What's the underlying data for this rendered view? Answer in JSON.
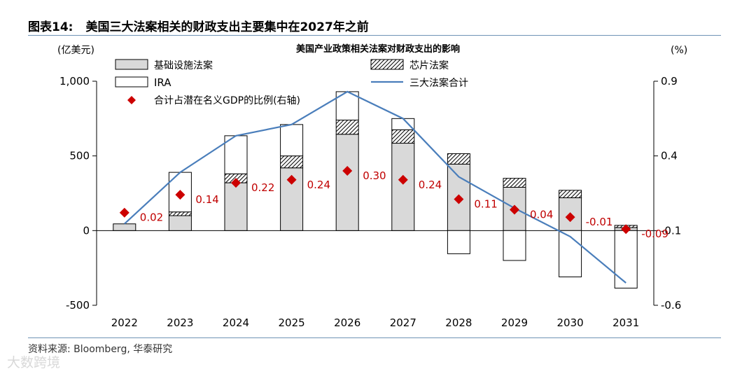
{
  "figure": {
    "label": "图表14:",
    "title": "美国三大法案相关的财政支出主要集中在2027年之前",
    "source": "资料来源: Bloomberg, 华泰研究",
    "watermark": "大数跨境"
  },
  "colors": {
    "infra": "#d9d9d9",
    "chips_hatch": "#000000",
    "ira": "#ffffff",
    "total_line": "#4a7ebb",
    "ratio_marker": "#cc0000",
    "ratio_label": "#c00000",
    "rule": "#6f93b5"
  },
  "chart_data": {
    "type": "bar",
    "title": "美国产业政策相关法案对财政支出的影响",
    "left_unit": "(亿美元)",
    "right_unit": "(%)",
    "categories": [
      "2022",
      "2023",
      "2024",
      "2025",
      "2026",
      "2027",
      "2028",
      "2029",
      "2030",
      "2031"
    ],
    "ylim_left": [
      -500,
      1000
    ],
    "yticks_left": [
      {
        "value": 1000,
        "label": "1,000"
      },
      {
        "value": 500,
        "label": "500"
      },
      {
        "value": 0,
        "label": "0"
      },
      {
        "value": -500,
        "label": "-500"
      }
    ],
    "ylim_right": [
      -0.6,
      0.9
    ],
    "yticks_right": [
      {
        "value": 0.9,
        "label": "0.9"
      },
      {
        "value": 0.4,
        "label": "0.4"
      },
      {
        "value": -0.1,
        "label": "-0.1"
      },
      {
        "value": -0.6,
        "label": "-0.6"
      }
    ],
    "series": [
      {
        "key": "infra",
        "name": "基础设施法案",
        "kind": "stacked-bar",
        "values": [
          45,
          100,
          320,
          420,
          645,
          585,
          445,
          290,
          220,
          20
        ]
      },
      {
        "key": "chips",
        "name": "芯片法案",
        "kind": "stacked-bar",
        "values": [
          0,
          25,
          60,
          80,
          95,
          90,
          70,
          60,
          50,
          15
        ]
      },
      {
        "key": "ira",
        "name": "IRA",
        "kind": "stacked-bar",
        "values": [
          0,
          265,
          255,
          210,
          190,
          75,
          -155,
          -200,
          -310,
          -385
        ]
      },
      {
        "key": "total",
        "name": "三大法案合计",
        "kind": "line",
        "values": [
          45,
          390,
          635,
          710,
          930,
          750,
          360,
          150,
          -40,
          -350
        ]
      },
      {
        "key": "ratio",
        "name": "合计占潜在名义GDP的比例(右轴)",
        "kind": "marker",
        "axis": "right",
        "values": [
          0.02,
          0.14,
          0.22,
          0.24,
          0.3,
          0.24,
          0.11,
          0.04,
          -0.01,
          -0.09
        ],
        "labels": [
          "0.02",
          "0.14",
          "0.22",
          "0.24",
          "0.30",
          "0.24",
          "0.11",
          "0.04",
          "-0.01",
          "-0.09"
        ]
      }
    ],
    "legend_position": "top-left"
  }
}
